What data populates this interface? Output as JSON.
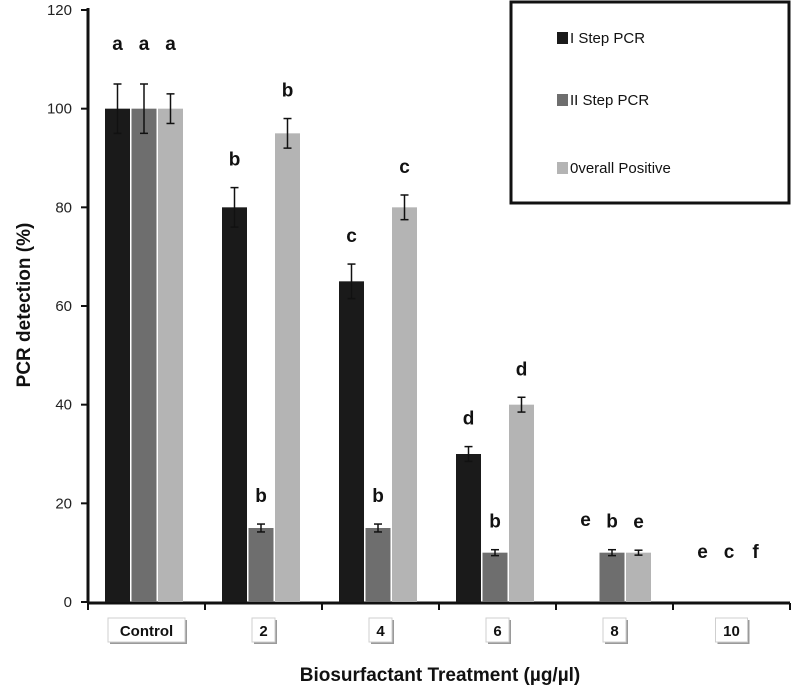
{
  "chart_data": {
    "type": "bar",
    "title": "",
    "xlabel": "Biosurfactant Treatment (µg/µl)",
    "ylabel": "PCR detection (%)",
    "ylim": [
      0,
      120
    ],
    "yticks": [
      "0",
      "20",
      "40",
      "60",
      "80",
      "100",
      "120"
    ],
    "categories": [
      "Control",
      "2",
      "4",
      "6",
      "8",
      "10"
    ],
    "legend_position": "top-right",
    "series": [
      {
        "name": "I Step PCR",
        "color": "#1a1a1a",
        "values": [
          100,
          80,
          65,
          30,
          0,
          0
        ],
        "errors": [
          5,
          4,
          3.5,
          1.5,
          0,
          0
        ],
        "letters": [
          "a",
          "b",
          "c",
          "d",
          "e",
          "e"
        ]
      },
      {
        "name": "II Step PCR",
        "color": "#6e6e6e",
        "values": [
          100,
          15,
          15,
          10,
          10,
          0
        ],
        "errors": [
          5,
          0.8,
          0.8,
          0.6,
          0.6,
          0
        ],
        "letters": [
          "a",
          "b",
          "b",
          "b",
          "b",
          "c"
        ]
      },
      {
        "name": "0verall Positive",
        "color": "#b4b4b4",
        "values": [
          100,
          95,
          80,
          40,
          10,
          0
        ],
        "errors": [
          3,
          3,
          2.5,
          1.5,
          0.5,
          0
        ],
        "letters": [
          "a",
          "b",
          "c",
          "d",
          "e",
          "f"
        ]
      }
    ]
  }
}
